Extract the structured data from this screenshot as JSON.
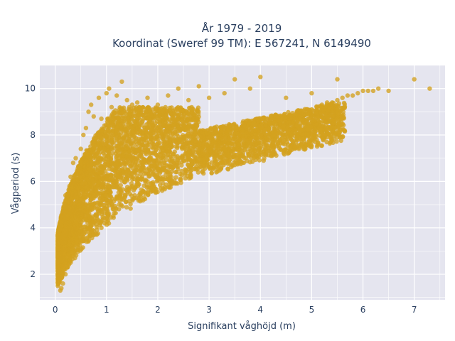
{
  "chart_data": {
    "type": "scatter",
    "title_line1": "År 1979 - 2019",
    "title_line2": "Koordinat (Sweref 99 TM): E 567241, N 6149490",
    "xlabel": "Signifikant våghöjd (m)",
    "ylabel": "Vågperiod (s)",
    "xlim": [
      -0.3,
      7.6
    ],
    "ylim": [
      0.9,
      11.0
    ],
    "xticks": [
      0,
      1,
      2,
      3,
      4,
      5,
      6,
      7
    ],
    "yticks": [
      2,
      4,
      6,
      8,
      10
    ],
    "grid": true,
    "marker_color": "#D4A21F",
    "marker_opacity": 0.78,
    "background_color": "#E5E5EF",
    "series": [
      {
        "values_description_note": "",
        "points": [
          [
            0.05,
            1.5
          ],
          [
            0.07,
            1.9
          ],
          [
            0.08,
            2.2
          ],
          [
            0.1,
            1.3
          ],
          [
            0.1,
            2.6
          ],
          [
            0.1,
            3.4
          ],
          [
            0.12,
            1.4
          ],
          [
            0.15,
            1.6
          ],
          [
            0.15,
            4.5
          ],
          [
            0.18,
            3.0
          ],
          [
            0.2,
            2.0
          ],
          [
            0.2,
            5.4
          ],
          [
            0.22,
            2.4
          ],
          [
            0.25,
            4.0
          ],
          [
            0.28,
            5.8
          ],
          [
            0.3,
            2.5
          ],
          [
            0.3,
            6.2
          ],
          [
            0.35,
            3.1
          ],
          [
            0.35,
            6.8
          ],
          [
            0.4,
            3.3
          ],
          [
            0.4,
            7.0
          ],
          [
            0.45,
            4.6
          ],
          [
            0.5,
            3.5
          ],
          [
            0.5,
            7.4
          ],
          [
            0.55,
            8.0
          ],
          [
            0.6,
            3.8
          ],
          [
            0.6,
            8.3
          ],
          [
            0.65,
            9.0
          ],
          [
            0.7,
            4.2
          ],
          [
            0.7,
            9.3
          ],
          [
            0.75,
            8.8
          ],
          [
            0.8,
            4.5
          ],
          [
            0.85,
            9.6
          ],
          [
            0.9,
            4.0
          ],
          [
            0.9,
            8.7
          ],
          [
            1.0,
            4.8
          ],
          [
            1.0,
            9.8
          ],
          [
            1.05,
            10.0
          ],
          [
            1.1,
            5.0
          ],
          [
            1.1,
            9.2
          ],
          [
            1.2,
            5.3
          ],
          [
            1.2,
            9.7
          ],
          [
            1.3,
            5.5
          ],
          [
            1.3,
            10.3
          ],
          [
            1.4,
            5.6
          ],
          [
            1.4,
            9.5
          ],
          [
            1.5,
            5.8
          ],
          [
            1.5,
            9.3
          ],
          [
            1.6,
            6.0
          ],
          [
            1.6,
            9.4
          ],
          [
            1.7,
            6.1
          ],
          [
            1.8,
            6.0
          ],
          [
            1.8,
            9.6
          ],
          [
            1.9,
            6.3
          ],
          [
            2.0,
            6.5
          ],
          [
            2.0,
            9.3
          ],
          [
            2.1,
            6.6
          ],
          [
            2.2,
            6.4
          ],
          [
            2.2,
            9.7
          ],
          [
            2.3,
            6.6
          ],
          [
            2.4,
            6.8
          ],
          [
            2.4,
            10.0
          ],
          [
            2.5,
            6.9
          ],
          [
            2.6,
            7.0
          ],
          [
            2.6,
            9.5
          ],
          [
            2.7,
            7.1
          ],
          [
            2.8,
            7.3
          ],
          [
            2.8,
            10.1
          ],
          [
            2.9,
            7.2
          ],
          [
            3.0,
            7.4
          ],
          [
            3.0,
            9.6
          ],
          [
            3.1,
            7.5
          ],
          [
            3.2,
            7.6
          ],
          [
            3.3,
            7.7
          ],
          [
            3.3,
            9.8
          ],
          [
            3.4,
            7.8
          ],
          [
            3.5,
            7.9
          ],
          [
            3.5,
            10.4
          ],
          [
            3.6,
            8.0
          ],
          [
            3.7,
            8.1
          ],
          [
            3.8,
            8.0
          ],
          [
            3.8,
            10.0
          ],
          [
            3.9,
            8.2
          ],
          [
            4.0,
            8.3
          ],
          [
            4.0,
            10.5
          ],
          [
            4.1,
            8.4
          ],
          [
            4.2,
            8.5
          ],
          [
            4.3,
            8.6
          ],
          [
            4.4,
            8.6
          ],
          [
            4.5,
            8.7
          ],
          [
            4.5,
            9.6
          ],
          [
            4.6,
            8.8
          ],
          [
            4.7,
            8.9
          ],
          [
            4.8,
            9.0
          ],
          [
            4.9,
            9.1
          ],
          [
            5.0,
            9.1
          ],
          [
            5.0,
            9.8
          ],
          [
            5.1,
            9.2
          ],
          [
            5.2,
            9.3
          ],
          [
            5.3,
            9.4
          ],
          [
            5.4,
            9.4
          ],
          [
            5.5,
            9.5
          ],
          [
            5.5,
            10.4
          ],
          [
            5.6,
            9.6
          ],
          [
            5.7,
            9.7
          ],
          [
            5.8,
            9.7
          ],
          [
            5.9,
            9.8
          ],
          [
            6.0,
            9.9
          ],
          [
            6.1,
            9.9
          ],
          [
            6.2,
            9.9
          ],
          [
            6.3,
            10.0
          ],
          [
            6.5,
            9.9
          ],
          [
            7.0,
            10.4
          ],
          [
            7.3,
            10.0
          ]
        ]
      }
    ]
  }
}
